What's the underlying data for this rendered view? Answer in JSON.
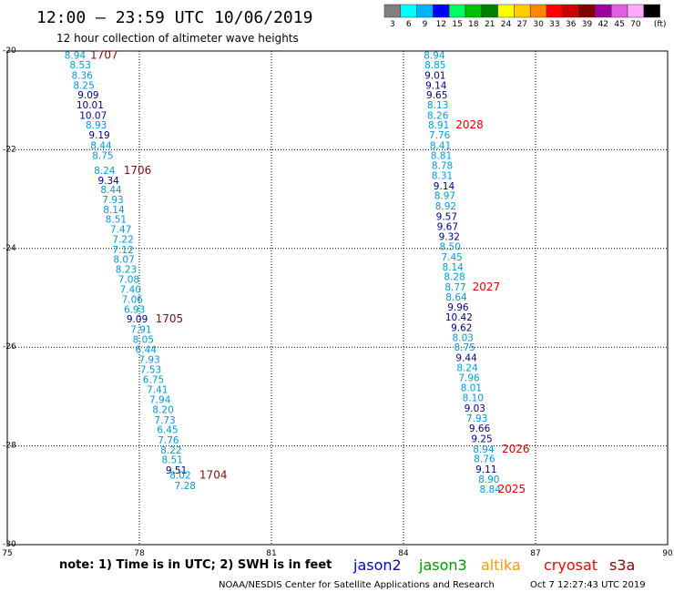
{
  "header": {
    "title": "12:00 – 23:59 UTC 10/06/2019",
    "subtitle": "12 hour collection of altimeter wave heights"
  },
  "colorbar": {
    "unit": "(ft)",
    "bins": [
      {
        "label": "3",
        "color": "#7f7f7f"
      },
      {
        "label": "6",
        "color": "#00ffff"
      },
      {
        "label": "9",
        "color": "#00b2ff"
      },
      {
        "label": "12",
        "color": "#0000ff"
      },
      {
        "label": "15",
        "color": "#00ff66"
      },
      {
        "label": "18",
        "color": "#00c000"
      },
      {
        "label": "21",
        "color": "#008000"
      },
      {
        "label": "24",
        "color": "#ffff00"
      },
      {
        "label": "27",
        "color": "#ffcc00"
      },
      {
        "label": "30",
        "color": "#ff8800"
      },
      {
        "label": "33",
        "color": "#ff0000"
      },
      {
        "label": "36",
        "color": "#cc0000"
      },
      {
        "label": "39",
        "color": "#800000"
      },
      {
        "label": "42",
        "color": "#a000a0"
      },
      {
        "label": "45",
        "color": "#e060e0"
      },
      {
        "label": "70",
        "color": "#ffaaff"
      },
      {
        "label": "",
        "color": "#000000"
      }
    ]
  },
  "chart_data": {
    "type": "scatter",
    "xlim": [
      75,
      90
    ],
    "ylim": [
      -30,
      -20
    ],
    "xticks": [
      75,
      78,
      81,
      84,
      87,
      90
    ],
    "yticks": [
      -20,
      -22,
      -24,
      -26,
      -28,
      -30
    ],
    "xtick_labels": [
      "75",
      "78",
      "81",
      "84",
      "87",
      "90"
    ],
    "ytick_labels": [
      "-20",
      "-22",
      "-24",
      "-26",
      "-28",
      "-30"
    ],
    "value_colors": {
      "6-9": "#0099dd",
      "9-12": "#000080"
    },
    "tracks": [
      {
        "points": [
          {
            "x": 76.54,
            "y": -20.06,
            "v": "8.94"
          },
          {
            "x": 76.66,
            "y": -20.26,
            "v": "8.53"
          },
          {
            "x": 76.7,
            "y": -20.47,
            "v": "8.36"
          },
          {
            "x": 76.74,
            "y": -20.67,
            "v": "8.25"
          },
          {
            "x": 76.84,
            "y": -20.87,
            "v": "9.09"
          },
          {
            "x": 76.88,
            "y": -21.07,
            "v": "10.01"
          },
          {
            "x": 76.95,
            "y": -21.28,
            "v": "10.07"
          },
          {
            "x": 77.02,
            "y": -21.48,
            "v": "8.93"
          },
          {
            "x": 77.09,
            "y": -21.68,
            "v": "9.19"
          },
          {
            "x": 77.13,
            "y": -21.89,
            "v": "8.44"
          },
          {
            "x": 77.17,
            "y": -22.09,
            "v": "8.75"
          },
          {
            "x": 77.21,
            "y": -22.4,
            "v": "8.24"
          },
          {
            "x": 77.3,
            "y": -22.6,
            "v": "9.34"
          },
          {
            "x": 77.36,
            "y": -22.79,
            "v": "8.44"
          },
          {
            "x": 77.4,
            "y": -22.99,
            "v": "7.93"
          },
          {
            "x": 77.42,
            "y": -23.19,
            "v": "8.14"
          },
          {
            "x": 77.47,
            "y": -23.39,
            "v": "8.51"
          },
          {
            "x": 77.58,
            "y": -23.59,
            "v": "7.47"
          },
          {
            "x": 77.63,
            "y": -23.79,
            "v": "7.22"
          },
          {
            "x": 77.63,
            "y": -24.0,
            "v": "7.12"
          },
          {
            "x": 77.65,
            "y": -24.2,
            "v": "8.07"
          },
          {
            "x": 77.7,
            "y": -24.4,
            "v": "8.23"
          },
          {
            "x": 77.76,
            "y": -24.6,
            "v": "7.08"
          },
          {
            "x": 77.8,
            "y": -24.81,
            "v": "7.40"
          },
          {
            "x": 77.84,
            "y": -25.01,
            "v": "7.06"
          },
          {
            "x": 77.89,
            "y": -25.21,
            "v": "6.93"
          },
          {
            "x": 77.95,
            "y": -25.41,
            "v": "9.09"
          },
          {
            "x": 78.04,
            "y": -25.62,
            "v": "7.91"
          },
          {
            "x": 78.09,
            "y": -25.82,
            "v": "8.05"
          },
          {
            "x": 78.15,
            "y": -26.02,
            "v": "6.44"
          },
          {
            "x": 78.23,
            "y": -26.23,
            "v": "7.93"
          },
          {
            "x": 78.26,
            "y": -26.43,
            "v": "7.53"
          },
          {
            "x": 78.32,
            "y": -26.63,
            "v": "6.75"
          },
          {
            "x": 78.41,
            "y": -26.84,
            "v": "7.41"
          },
          {
            "x": 78.47,
            "y": -27.04,
            "v": "7.94"
          },
          {
            "x": 78.54,
            "y": -27.24,
            "v": "8.20"
          },
          {
            "x": 78.58,
            "y": -27.45,
            "v": "7.73"
          },
          {
            "x": 78.64,
            "y": -27.65,
            "v": "6.45"
          },
          {
            "x": 78.66,
            "y": -27.86,
            "v": "7.76"
          },
          {
            "x": 78.72,
            "y": -28.06,
            "v": "8.22"
          },
          {
            "x": 78.75,
            "y": -28.26,
            "v": "8.51"
          },
          {
            "x": 78.84,
            "y": -28.47,
            "v": "9.51"
          },
          {
            "x": 78.93,
            "y": -28.57,
            "v": "8.02"
          },
          {
            "x": 79.04,
            "y": -28.78,
            "v": "7.28"
          }
        ],
        "passes": [
          {
            "label": "1707",
            "x": 77.2,
            "y": -20.06
          },
          {
            "label": "1706",
            "x": 77.96,
            "y": -22.4
          },
          {
            "label": "1705",
            "x": 78.68,
            "y": -25.41
          },
          {
            "label": "1704",
            "x": 79.68,
            "y": -28.57
          }
        ]
      },
      {
        "points": [
          {
            "x": 84.7,
            "y": -20.06,
            "v": "8.94"
          },
          {
            "x": 84.72,
            "y": -20.26,
            "v": "8.85"
          },
          {
            "x": 84.72,
            "y": -20.47,
            "v": "9.01"
          },
          {
            "x": 84.74,
            "y": -20.67,
            "v": "9.14"
          },
          {
            "x": 84.76,
            "y": -20.87,
            "v": "9.65"
          },
          {
            "x": 84.78,
            "y": -21.07,
            "v": "8.13"
          },
          {
            "x": 84.78,
            "y": -21.28,
            "v": "8.26"
          },
          {
            "x": 84.8,
            "y": -21.48,
            "v": "8.91"
          },
          {
            "x": 84.82,
            "y": -21.68,
            "v": "7.76"
          },
          {
            "x": 84.84,
            "y": -21.89,
            "v": "8.41"
          },
          {
            "x": 84.86,
            "y": -22.09,
            "v": "8.81"
          },
          {
            "x": 84.88,
            "y": -22.3,
            "v": "8.78"
          },
          {
            "x": 84.88,
            "y": -22.5,
            "v": "8.31"
          },
          {
            "x": 84.92,
            "y": -22.71,
            "v": "9.14"
          },
          {
            "x": 84.94,
            "y": -22.91,
            "v": "8.97"
          },
          {
            "x": 84.96,
            "y": -23.12,
            "v": "8.92"
          },
          {
            "x": 84.98,
            "y": -23.33,
            "v": "9.57"
          },
          {
            "x": 85.0,
            "y": -23.53,
            "v": "9.67"
          },
          {
            "x": 85.04,
            "y": -23.74,
            "v": "9.32"
          },
          {
            "x": 85.06,
            "y": -23.94,
            "v": "8.50"
          },
          {
            "x": 85.1,
            "y": -24.15,
            "v": "7.45"
          },
          {
            "x": 85.12,
            "y": -24.35,
            "v": "8.14"
          },
          {
            "x": 85.16,
            "y": -24.55,
            "v": "8.28"
          },
          {
            "x": 85.18,
            "y": -24.76,
            "v": "8.77"
          },
          {
            "x": 85.2,
            "y": -24.96,
            "v": "8.64"
          },
          {
            "x": 85.24,
            "y": -25.17,
            "v": "9.96"
          },
          {
            "x": 85.26,
            "y": -25.37,
            "v": "10.42"
          },
          {
            "x": 85.32,
            "y": -25.58,
            "v": "9.62"
          },
          {
            "x": 85.35,
            "y": -25.78,
            "v": "8.03"
          },
          {
            "x": 85.39,
            "y": -25.98,
            "v": "8.75"
          },
          {
            "x": 85.43,
            "y": -26.19,
            "v": "9.44"
          },
          {
            "x": 85.45,
            "y": -26.39,
            "v": "8.24"
          },
          {
            "x": 85.49,
            "y": -26.6,
            "v": "7.96"
          },
          {
            "x": 85.54,
            "y": -26.8,
            "v": "8.01"
          },
          {
            "x": 85.58,
            "y": -27.0,
            "v": "8.10"
          },
          {
            "x": 85.62,
            "y": -27.21,
            "v": "9.03"
          },
          {
            "x": 85.67,
            "y": -27.42,
            "v": "7.93"
          },
          {
            "x": 85.73,
            "y": -27.62,
            "v": "9.66"
          },
          {
            "x": 85.78,
            "y": -27.83,
            "v": "9.25"
          },
          {
            "x": 85.82,
            "y": -28.04,
            "v": "8.94"
          },
          {
            "x": 85.84,
            "y": -28.24,
            "v": "8.76"
          },
          {
            "x": 85.88,
            "y": -28.45,
            "v": "9.11"
          },
          {
            "x": 85.94,
            "y": -28.65,
            "v": "8.90"
          },
          {
            "x": 85.97,
            "y": -28.86,
            "v": "8.84"
          }
        ],
        "passes": [
          {
            "label": "2028",
            "x": 85.5,
            "y": -21.48
          },
          {
            "label": "2027",
            "x": 85.88,
            "y": -24.76
          },
          {
            "label": "2026",
            "x": 86.55,
            "y": -28.04
          },
          {
            "label": "2025",
            "x": 86.46,
            "y": -28.86
          }
        ]
      }
    ]
  },
  "footer": {
    "note": "note: 1) Time is in UTC; 2) SWH is in feet",
    "credit": "NOAA/NESDIS Center for Satellite Applications and Research",
    "timestamp": "Oct  7 12:27:43 UTC 2019",
    "legend": [
      {
        "label": "jason2",
        "color": "#0000dd"
      },
      {
        "label": "jason3",
        "color": "#009900"
      },
      {
        "label": "altika",
        "color": "#ff9900"
      },
      {
        "label": "cryosat",
        "color": "#ff0000"
      },
      {
        "label": "s3a",
        "color": "#880000"
      }
    ]
  },
  "pass_label_color": "#7a1010",
  "pass_label_color_alt": "#dd0000"
}
